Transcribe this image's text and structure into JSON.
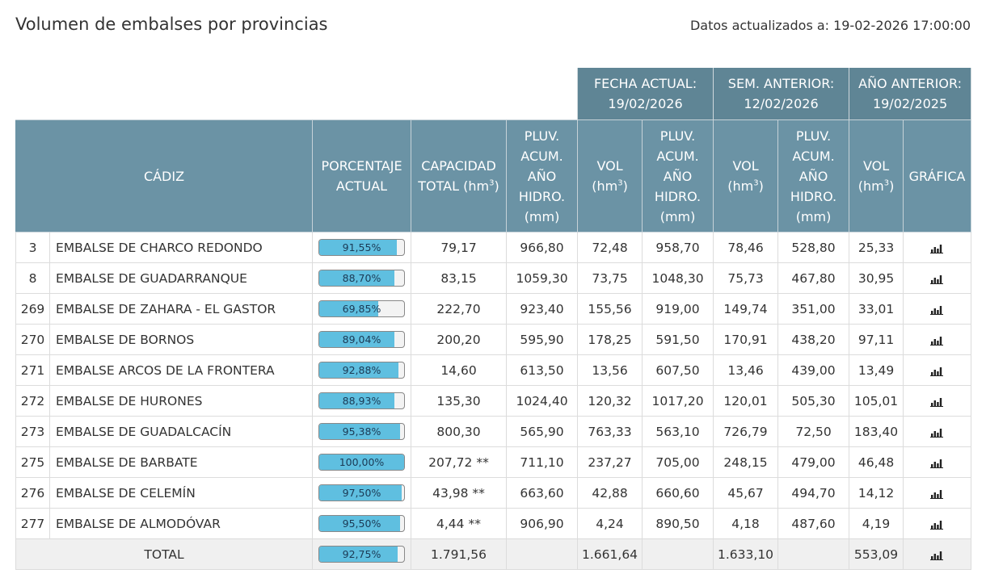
{
  "page_title": "Volumen de embalses por provincias",
  "updated": {
    "label": "Datos actualizados a:",
    "value": "19-02-2026 17:00:00"
  },
  "periods": [
    {
      "line1": "FECHA ACTUAL:",
      "line2": "19/02/2026"
    },
    {
      "line1": "SEM. ANTERIOR:",
      "line2": "12/02/2026"
    },
    {
      "line1": "AÑO ANTERIOR:",
      "line2": "19/02/2025"
    }
  ],
  "headers": {
    "province": "CÁDIZ",
    "pct": [
      "PORCENTAJE",
      "ACTUAL"
    ],
    "cap": [
      "CAPACIDAD",
      "TOTAL (hm",
      "3",
      ")"
    ],
    "pluv": [
      "PLUV.",
      "ACUM.",
      "AÑO",
      "HIDRO.",
      "(mm)"
    ],
    "vol": [
      "VOL",
      "(hm",
      "3",
      ")"
    ],
    "graph": "GRÁFICA"
  },
  "rows": [
    {
      "id": "3",
      "name": "EMBALSE DE CHARCO REDONDO",
      "pct": "91,55%",
      "pct_value": 91.55,
      "cap": "79,17",
      "pluv_act": "966,80",
      "vol_act": "72,48",
      "pluv_sem": "958,70",
      "vol_sem": "78,46",
      "pluv_ano": "528,80",
      "vol_ano": "25,33"
    },
    {
      "id": "8",
      "name": "EMBALSE DE GUADARRANQUE",
      "pct": "88,70%",
      "pct_value": 88.7,
      "cap": "83,15",
      "pluv_act": "1059,30",
      "vol_act": "73,75",
      "pluv_sem": "1048,30",
      "vol_sem": "75,73",
      "pluv_ano": "467,80",
      "vol_ano": "30,95"
    },
    {
      "id": "269",
      "name": "EMBALSE DE ZAHARA - EL GASTOR",
      "pct": "69,85%",
      "pct_value": 69.85,
      "cap": "222,70",
      "pluv_act": "923,40",
      "vol_act": "155,56",
      "pluv_sem": "919,00",
      "vol_sem": "149,74",
      "pluv_ano": "351,00",
      "vol_ano": "33,01"
    },
    {
      "id": "270",
      "name": "EMBALSE DE BORNOS",
      "pct": "89,04%",
      "pct_value": 89.04,
      "cap": "200,20",
      "pluv_act": "595,90",
      "vol_act": "178,25",
      "pluv_sem": "591,50",
      "vol_sem": "170,91",
      "pluv_ano": "438,20",
      "vol_ano": "97,11"
    },
    {
      "id": "271",
      "name": "EMBALSE ARCOS DE LA FRONTERA",
      "pct": "92,88%",
      "pct_value": 92.88,
      "cap": "14,60",
      "pluv_act": "613,50",
      "vol_act": "13,56",
      "pluv_sem": "607,50",
      "vol_sem": "13,46",
      "pluv_ano": "439,00",
      "vol_ano": "13,49"
    },
    {
      "id": "272",
      "name": "EMBALSE DE HURONES",
      "pct": "88,93%",
      "pct_value": 88.93,
      "cap": "135,30",
      "pluv_act": "1024,40",
      "vol_act": "120,32",
      "pluv_sem": "1017,20",
      "vol_sem": "120,01",
      "pluv_ano": "505,30",
      "vol_ano": "105,01"
    },
    {
      "id": "273",
      "name": "EMBALSE DE GUADALCACÍN",
      "pct": "95,38%",
      "pct_value": 95.38,
      "cap": "800,30",
      "pluv_act": "565,90",
      "vol_act": "763,33",
      "pluv_sem": "563,10",
      "vol_sem": "726,79",
      "pluv_ano": "72,50",
      "vol_ano": "183,40"
    },
    {
      "id": "275",
      "name": "EMBALSE DE BARBATE",
      "pct": "100,00%",
      "pct_value": 100.0,
      "cap": "207,72 **",
      "pluv_act": "711,10",
      "vol_act": "237,27",
      "pluv_sem": "705,00",
      "vol_sem": "248,15",
      "pluv_ano": "479,00",
      "vol_ano": "46,48"
    },
    {
      "id": "276",
      "name": "EMBALSE DE CELEMÍN",
      "pct": "97,50%",
      "pct_value": 97.5,
      "cap": "43,98 **",
      "pluv_act": "663,60",
      "vol_act": "42,88",
      "pluv_sem": "660,60",
      "vol_sem": "45,67",
      "pluv_ano": "494,70",
      "vol_ano": "14,12"
    },
    {
      "id": "277",
      "name": "EMBALSE DE ALMODÓVAR",
      "pct": "95,50%",
      "pct_value": 95.5,
      "cap": "4,44 **",
      "pluv_act": "906,90",
      "vol_act": "4,24",
      "pluv_sem": "890,50",
      "vol_sem": "4,18",
      "pluv_ano": "487,60",
      "vol_ano": "4,19"
    }
  ],
  "total": {
    "label": "TOTAL",
    "pct": "92,75%",
    "pct_value": 92.75,
    "cap": "1.791,56",
    "vol_act": "1.661,64",
    "vol_sem": "1.633,10",
    "vol_ano": "553,09"
  },
  "icons": {
    "graph": "bar-chart-icon"
  },
  "colors": {
    "header": "#6b93a5",
    "period_header": "#5f8595",
    "bar_fill": "#5fbfe0",
    "total_row": "#f0f0f0"
  }
}
